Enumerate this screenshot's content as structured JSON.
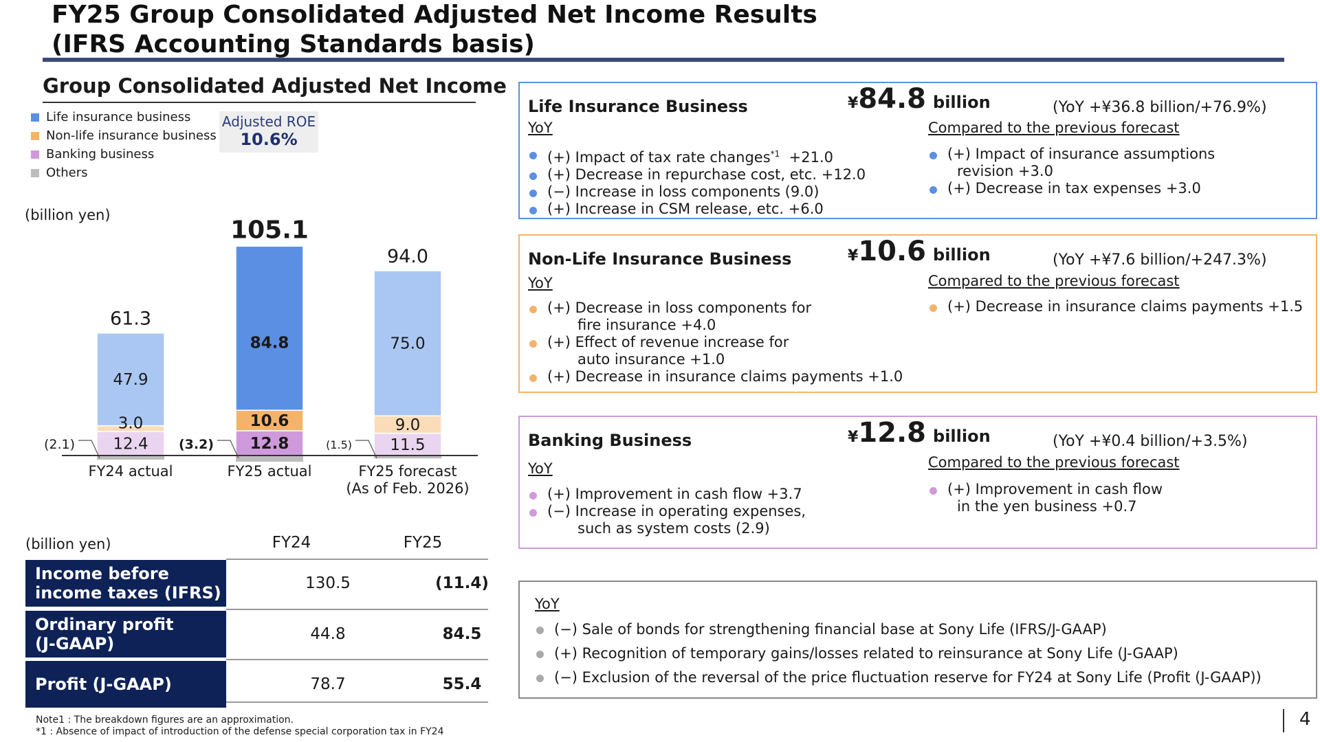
{
  "title": {
    "line1": "FY25 Group Consolidated Adjusted Net Income Results",
    "line2": "(IFRS Accounting Standards basis)"
  },
  "chart_title": "Group Consolidated Adjusted Net Income",
  "legend": [
    {
      "label": "Life insurance business",
      "color": "#5b8fe3"
    },
    {
      "label": "Non-life insurance business",
      "color": "#f3b46a"
    },
    {
      "label": "Banking business",
      "color": "#cf9adb"
    },
    {
      "label": "Others",
      "color": "#bdbdbd"
    }
  ],
  "roe": {
    "label": "Adjusted ROE",
    "value": "10.6%"
  },
  "unit_label": "(billion yen)",
  "chart_data": {
    "type": "bar",
    "stacked": true,
    "unit": "billion yen",
    "categories": [
      "FY24 actual",
      "FY25 actual",
      "FY25 forecast\n(As of Feb. 2026)"
    ],
    "totals": [
      61.3,
      105.1,
      94.0
    ],
    "series": [
      {
        "name": "Others",
        "values": [
          -2.1,
          -3.2,
          -1.5
        ],
        "labels": [
          "(2.1)",
          "(3.2)",
          "(1.5)"
        ],
        "color": "#bdbdbd"
      },
      {
        "name": "Banking business",
        "values": [
          12.4,
          12.8,
          11.5
        ],
        "colors": [
          "#ead5f0",
          "#cf9adb",
          "#ead5f0"
        ]
      },
      {
        "name": "Non-life insurance business",
        "values": [
          3.0,
          10.6,
          9.0
        ],
        "colors": [
          "#fbdcb8",
          "#f3b46a",
          "#fbdcb8"
        ]
      },
      {
        "name": "Life insurance business",
        "values": [
          47.9,
          84.8,
          75.0
        ],
        "colors": [
          "#a9c7f2",
          "#5b8fe3",
          "#a9c7f2"
        ]
      }
    ],
    "highlight_category": 1
  },
  "table": {
    "unit": "(billion yen)",
    "headers": [
      "FY24",
      "FY25"
    ],
    "rows": [
      {
        "label1": "Income before",
        "label2": "income taxes (IFRS)",
        "fy24": "130.5",
        "fy25": "(11.4)"
      },
      {
        "label1": "Ordinary profit",
        "label2": "(J-GAAP)",
        "fy24": "44.8",
        "fy25": "84.5"
      },
      {
        "label1": "Profit (J-GAAP)",
        "label2": "",
        "fy24": "78.7",
        "fy25": "55.4"
      }
    ]
  },
  "notes": {
    "note1": "Note1 : The breakdown figures are an approximation.",
    "note2": "*1 : Absence of impact of introduction of the defense special corporation tax in FY24"
  },
  "life_box": {
    "title": "Life Insurance Business",
    "yen": "¥",
    "amount": "84.8",
    "unit": "billion",
    "yoy": "(YoY +¥36.8 billion/+76.9%)",
    "color": "#5b8fe3",
    "left_head": "YoY",
    "left_items": [
      {
        "text": "(+) Impact of tax rate changes",
        "sup": "*1",
        "tail": "  +21.0"
      },
      {
        "text": "(+) Decrease in repurchase cost, etc.  +12.0"
      },
      {
        "text": "(−) Increase in loss components  (9.0)"
      },
      {
        "text": "(+) Increase in CSM release, etc.  +6.0"
      }
    ],
    "right_head": "Compared to the previous forecast",
    "right_items": [
      {
        "text": "(+) Impact of insurance assumptions",
        "cont": "revision  +3.0"
      },
      {
        "text": "(+) Decrease in tax expenses  +3.0"
      }
    ]
  },
  "nonlife_box": {
    "title": "Non-Life Insurance Business",
    "yen": "¥",
    "amount": "10.6",
    "unit": "billion",
    "yoy": "(YoY +¥7.6 billion/+247.3%)",
    "color": "#f3b46a",
    "left_head": "YoY",
    "left_items": [
      {
        "text": "(+) Decrease in loss components for",
        "cont": "fire insurance  +4.0"
      },
      {
        "text": "(+) Effect of revenue increase for",
        "cont": "auto insurance  +1.0"
      },
      {
        "text": "(+) Decrease in insurance claims payments  +1.0"
      }
    ],
    "right_head": "Compared to the previous forecast",
    "right_items": [
      {
        "text": "(+) Decrease in insurance claims payments  +1.5"
      }
    ]
  },
  "banking_box": {
    "title": "Banking Business",
    "yen": "¥",
    "amount": "12.8",
    "unit": "billion",
    "yoy": "(YoY +¥0.4 billion/+3.5%)",
    "color": "#cf9adb",
    "left_head": "YoY",
    "left_items": [
      {
        "text": "(+) Improvement in cash flow  +3.7"
      },
      {
        "text": "(−) Increase in operating expenses,",
        "cont": "such as system costs  (2.9)"
      }
    ],
    "right_head": "Compared to the previous forecast",
    "right_items": [
      {
        "text": "(+) Improvement in cash flow",
        "cont": "in the yen business   +0.7"
      }
    ]
  },
  "others_box": {
    "head": "YoY",
    "color": "#bdbdbd",
    "items": [
      {
        "text": "(−) Sale of bonds for strengthening financial base at Sony Life (IFRS/J-GAAP)"
      },
      {
        "text": "(+) Recognition of temporary gains/losses related to reinsurance at Sony Life (J-GAAP)"
      },
      {
        "text": "(−) Exclusion of the reversal of the price fluctuation reserve for FY24 at Sony Life (Profit (J-GAAP))"
      }
    ]
  },
  "page_number": "4"
}
